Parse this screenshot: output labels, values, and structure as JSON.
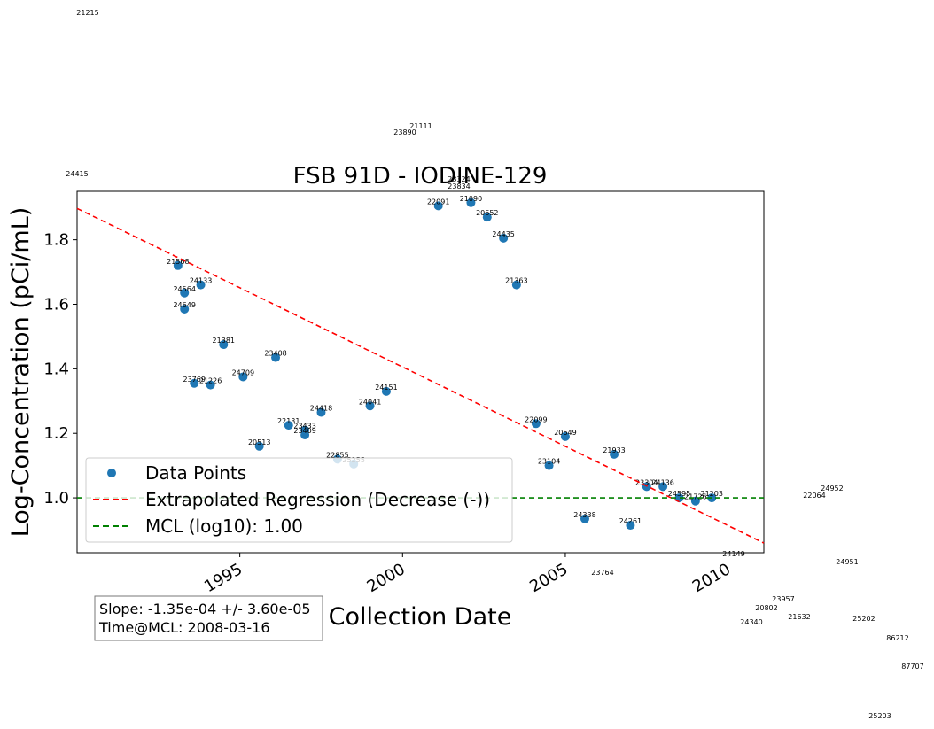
{
  "chart_data": {
    "type": "scatter",
    "title": "FSB 91D - IODINE-129",
    "xlabel": "Collection Date",
    "ylabel": "Log-Concentration (pCi/mL)",
    "xlim": [
      1990.0,
      2011.1
    ],
    "ylim": [
      0.83,
      1.95
    ],
    "x_ticks": [
      {
        "label": "1995",
        "value": 1995.0
      },
      {
        "label": "2000",
        "value": 2000.0
      },
      {
        "label": "2005",
        "value": 2005.0
      },
      {
        "label": "2010",
        "value": 2010.0
      }
    ],
    "y_ticks": [
      {
        "label": "1.0",
        "value": 1.0
      },
      {
        "label": "1.2",
        "value": 1.2
      },
      {
        "label": "1.4",
        "value": 1.4
      },
      {
        "label": "1.6",
        "value": 1.6
      },
      {
        "label": "1.8",
        "value": 1.8
      }
    ],
    "series": [
      {
        "name": "Data Points",
        "color": "#1f77b4",
        "points": [
          {
            "x": 1993.1,
            "y": 1.72,
            "label": "21568"
          },
          {
            "x": 1993.3,
            "y": 1.635,
            "label": "24564"
          },
          {
            "x": 1993.3,
            "y": 1.585,
            "label": "24649"
          },
          {
            "x": 1993.8,
            "y": 1.66,
            "label": "24133"
          },
          {
            "x": 1994.5,
            "y": 1.475,
            "label": "21381"
          },
          {
            "x": 1993.6,
            "y": 1.355,
            "label": "23769"
          },
          {
            "x": 1994.1,
            "y": 1.35,
            "label": "21226"
          },
          {
            "x": 1995.1,
            "y": 1.375,
            "label": "24709"
          },
          {
            "x": 1996.1,
            "y": 1.435,
            "label": "23408"
          },
          {
            "x": 1995.6,
            "y": 1.16,
            "label": "20513"
          },
          {
            "x": 1996.5,
            "y": 1.225,
            "label": "22131"
          },
          {
            "x": 1997.0,
            "y": 1.21,
            "label": "23433"
          },
          {
            "x": 1997.0,
            "y": 1.195,
            "label": "23409"
          },
          {
            "x": 1997.5,
            "y": 1.265,
            "label": "24418"
          },
          {
            "x": 1998.0,
            "y": 1.12,
            "label": "22855"
          },
          {
            "x": 1998.5,
            "y": 1.105,
            "label": "25255"
          },
          {
            "x": 1999.0,
            "y": 1.285,
            "label": "24041"
          },
          {
            "x": 1999.5,
            "y": 1.33,
            "label": "24151"
          },
          {
            "x": 2001.1,
            "y": 1.905,
            "label": "22091"
          },
          {
            "x": 2002.1,
            "y": 1.915,
            "label": "21090"
          },
          {
            "x": 2002.6,
            "y": 1.87,
            "label": "20652"
          },
          {
            "x": 2003.1,
            "y": 1.805,
            "label": "24435"
          },
          {
            "x": 2003.5,
            "y": 1.66,
            "label": "21363"
          },
          {
            "x": 2004.1,
            "y": 1.23,
            "label": "22099"
          },
          {
            "x": 2004.5,
            "y": 1.1,
            "label": "23104"
          },
          {
            "x": 2005.0,
            "y": 1.19,
            "label": "20649"
          },
          {
            "x": 2005.6,
            "y": 0.935,
            "label": "24338"
          },
          {
            "x": 2006.5,
            "y": 1.135,
            "label": "21933"
          },
          {
            "x": 2007.0,
            "y": 0.915,
            "label": "24261"
          },
          {
            "x": 2007.5,
            "y": 1.035,
            "label": "23304"
          },
          {
            "x": 2008.0,
            "y": 1.035,
            "label": "24136"
          },
          {
            "x": 2008.5,
            "y": 1.0,
            "label": "24595"
          },
          {
            "x": 2009.0,
            "y": 0.99,
            "label": "21726"
          },
          {
            "x": 2009.5,
            "y": 1.0,
            "label": "21203"
          }
        ]
      }
    ],
    "regression": {
      "name": "Extrapolated Regression (Decrease (-))",
      "color": "#ff0000",
      "x": [
        1990.0,
        2011.1
      ],
      "y": [
        1.897,
        0.86
      ]
    },
    "mcl": {
      "name": "MCL (log10): 1.00",
      "color": "#008000",
      "y": 1.0
    },
    "legend_position": "lower-left",
    "stats_text": [
      "Slope: -1.35e-04 +/- 3.60e-05",
      "Time@MCL: 2008-03-16"
    ],
    "outside_labels": [
      "21215",
      "21111",
      "23890",
      "24415",
      "23324",
      "23834",
      "24952",
      "22064",
      "24149",
      "24951",
      "23764",
      "23957",
      "20802",
      "21632",
      "25202",
      "24340",
      "86212",
      "87707",
      "25203"
    ]
  }
}
